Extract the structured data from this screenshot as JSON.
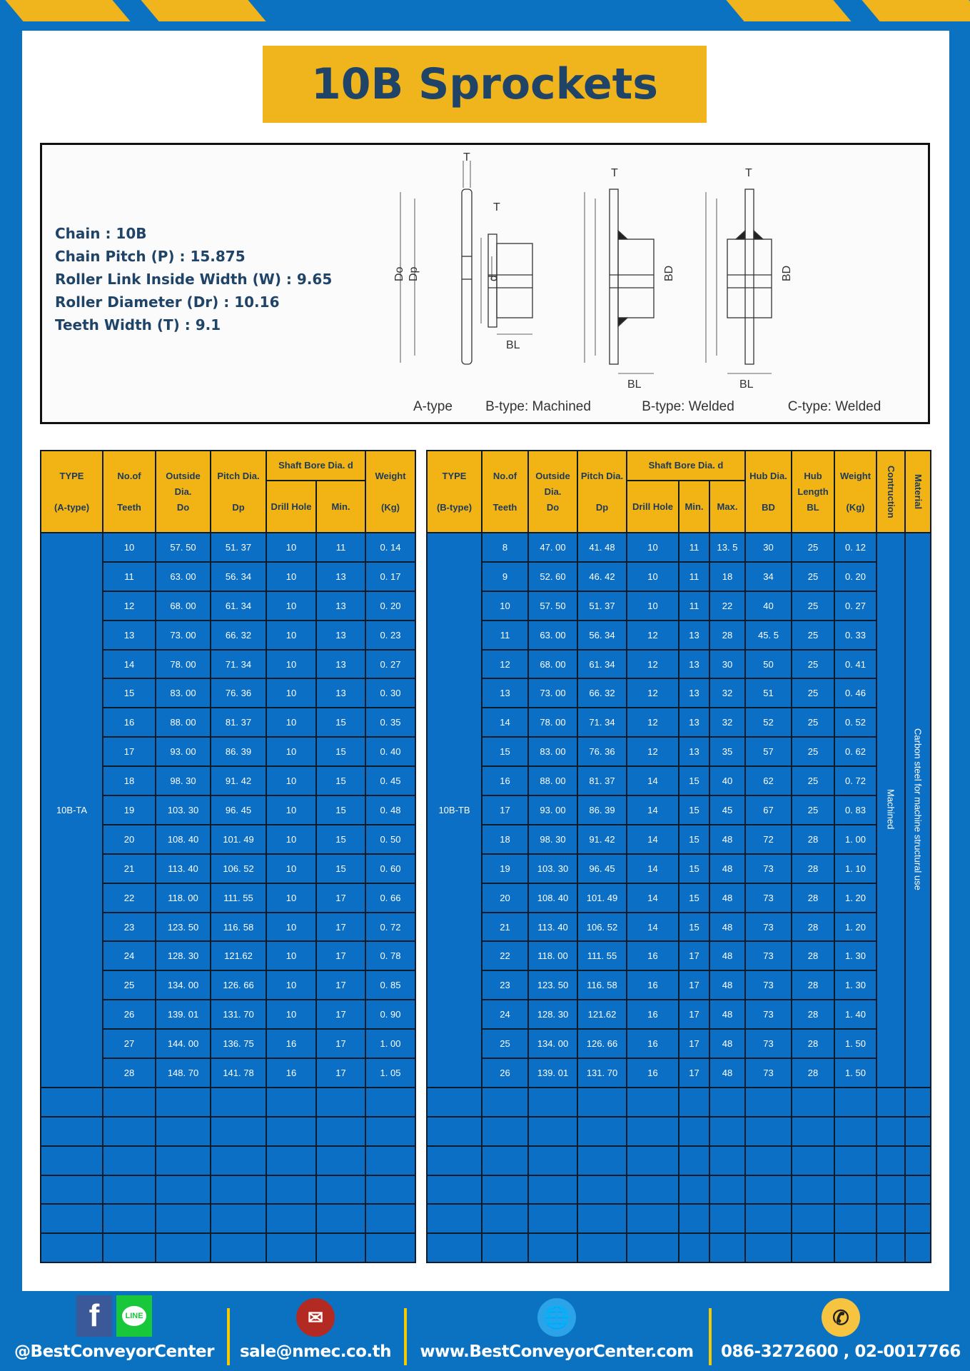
{
  "title": "10B Sprockets",
  "specs": [
    "Chain  :  10B",
    "Chain Pitch (P)  :  15.875",
    "Roller Link Inside Width (W) : 9.65",
    "Roller Diameter (Dr)  : 10.16",
    "Teeth Width (T)  :  9.1"
  ],
  "diagram": {
    "captions": [
      "A-type",
      "B-type: Machined",
      "B-type: Welded",
      "C-type: Welded"
    ],
    "labels": {
      "T": "T",
      "Do": "Do",
      "Dp": "Dp",
      "d": "d",
      "BD": "BD",
      "BL": "BL"
    }
  },
  "table_a": {
    "headers": {
      "type": "TYPE",
      "type2": "(A-type)",
      "teeth": "No.of",
      "teeth2": "Teeth",
      "do1": "Outside",
      "do2": "Dia.",
      "do3": "Do",
      "dp1": "Pitch Dia.",
      "dp2": "Dp",
      "bore": "Shaft Bore Dia. d",
      "drill": "Drill Hole",
      "min": "Min.",
      "wt1": "Weight",
      "wt2": "(Kg)"
    },
    "type_value": "10B-TA",
    "rows": [
      [
        "10",
        "57. 50",
        "51. 37",
        "10",
        "11",
        "0. 14"
      ],
      [
        "11",
        "63. 00",
        "56. 34",
        "10",
        "13",
        "0. 17"
      ],
      [
        "12",
        "68. 00",
        "61. 34",
        "10",
        "13",
        "0. 20"
      ],
      [
        "13",
        "73. 00",
        "66. 32",
        "10",
        "13",
        "0. 23"
      ],
      [
        "14",
        "78. 00",
        "71. 34",
        "10",
        "13",
        "0. 27"
      ],
      [
        "15",
        "83. 00",
        "76. 36",
        "10",
        "13",
        "0. 30"
      ],
      [
        "16",
        "88. 00",
        "81. 37",
        "10",
        "15",
        "0. 35"
      ],
      [
        "17",
        "93. 00",
        "86. 39",
        "10",
        "15",
        "0. 40"
      ],
      [
        "18",
        "98. 30",
        "91. 42",
        "10",
        "15",
        "0. 45"
      ],
      [
        "19",
        "103. 30",
        "96. 45",
        "10",
        "15",
        "0. 48"
      ],
      [
        "20",
        "108. 40",
        "101. 49",
        "10",
        "15",
        "0. 50"
      ],
      [
        "21",
        "113. 40",
        "106. 52",
        "10",
        "15",
        "0. 60"
      ],
      [
        "22",
        "118. 00",
        "111. 55",
        "10",
        "17",
        "0. 66"
      ],
      [
        "23",
        "123. 50",
        "116. 58",
        "10",
        "17",
        "0. 72"
      ],
      [
        "24",
        "128. 30",
        "121.62",
        "10",
        "17",
        "0. 78"
      ],
      [
        "25",
        "134. 00",
        "126. 66",
        "10",
        "17",
        "0. 85"
      ],
      [
        "26",
        "139. 01",
        "131. 70",
        "10",
        "17",
        "0. 90"
      ],
      [
        "27",
        "144. 00",
        "136. 75",
        "16",
        "17",
        "1. 00"
      ],
      [
        "28",
        "148. 70",
        "141. 78",
        "16",
        "17",
        "1. 05"
      ]
    ],
    "empty_rows": 6
  },
  "table_b": {
    "headers": {
      "type": "TYPE",
      "type2": "(B-type)",
      "teeth": "No.of",
      "teeth2": "Teeth",
      "do1": "Outside",
      "do2": "Dia.",
      "do3": "Do",
      "dp1": "Pitch Dia.",
      "dp2": "Dp",
      "bore": "Shaft Bore Dia. d",
      "drill": "Drill Hole",
      "min": "Min.",
      "max": "Max.",
      "bd1": "Hub Dia.",
      "bd2": "BD",
      "bl1": "Hub",
      "bl2": "Length",
      "bl3": "BL",
      "wt1": "Weight",
      "wt2": "(Kg)",
      "cons": "Contruction",
      "mat": "Material"
    },
    "type_value": "10B-TB",
    "construction": "Machined",
    "material": "Carbon steel  for machine structural use",
    "rows": [
      [
        "8",
        "47. 00",
        "41. 48",
        "10",
        "11",
        "13. 5",
        "30",
        "25",
        "0. 12"
      ],
      [
        "9",
        "52. 60",
        "46. 42",
        "10",
        "11",
        "18",
        "34",
        "25",
        "0. 20"
      ],
      [
        "10",
        "57. 50",
        "51. 37",
        "10",
        "11",
        "22",
        "40",
        "25",
        "0. 27"
      ],
      [
        "11",
        "63. 00",
        "56. 34",
        "12",
        "13",
        "28",
        "45. 5",
        "25",
        "0. 33"
      ],
      [
        "12",
        "68. 00",
        "61. 34",
        "12",
        "13",
        "30",
        "50",
        "25",
        "0. 41"
      ],
      [
        "13",
        "73. 00",
        "66. 32",
        "12",
        "13",
        "32",
        "51",
        "25",
        "0. 46"
      ],
      [
        "14",
        "78. 00",
        "71. 34",
        "12",
        "13",
        "32",
        "52",
        "25",
        "0. 52"
      ],
      [
        "15",
        "83. 00",
        "76. 36",
        "12",
        "13",
        "35",
        "57",
        "25",
        "0. 62"
      ],
      [
        "16",
        "88. 00",
        "81. 37",
        "14",
        "15",
        "40",
        "62",
        "25",
        "0. 72"
      ],
      [
        "17",
        "93. 00",
        "86. 39",
        "14",
        "15",
        "45",
        "67",
        "25",
        "0. 83"
      ],
      [
        "18",
        "98. 30",
        "91. 42",
        "14",
        "15",
        "48",
        "72",
        "28",
        "1. 00"
      ],
      [
        "19",
        "103. 30",
        "96. 45",
        "14",
        "15",
        "48",
        "73",
        "28",
        "1. 10"
      ],
      [
        "20",
        "108. 40",
        "101. 49",
        "14",
        "15",
        "48",
        "73",
        "28",
        "1. 20"
      ],
      [
        "21",
        "113. 40",
        "106. 52",
        "14",
        "15",
        "48",
        "73",
        "28",
        "1. 20"
      ],
      [
        "22",
        "118. 00",
        "111. 55",
        "16",
        "17",
        "48",
        "73",
        "28",
        "1. 30"
      ],
      [
        "23",
        "123. 50",
        "116. 58",
        "16",
        "17",
        "48",
        "73",
        "28",
        "1. 30"
      ],
      [
        "24",
        "128. 30",
        "121.62",
        "16",
        "17",
        "48",
        "73",
        "28",
        "1. 40"
      ],
      [
        "25",
        "134. 00",
        "126. 66",
        "16",
        "17",
        "48",
        "73",
        "28",
        "1. 50"
      ],
      [
        "26",
        "139. 01",
        "131. 70",
        "16",
        "17",
        "48",
        "73",
        "28",
        "1. 50"
      ]
    ],
    "empty_rows": 6
  },
  "footer": {
    "social": "@BestConveyorCenter",
    "email": "sale@nmec.co.th",
    "website": "www.BestConveyorCenter.com",
    "phone": "086-3272600 , 02-0017766",
    "line_label": "LINE",
    "icons": [
      "facebook-icon",
      "line-icon",
      "email-icon",
      "globe-icon",
      "phone-icon"
    ]
  },
  "colors": {
    "blue": "#0b72c1",
    "yellow": "#f0b41c",
    "cell_blue": "#0b6fc6",
    "title_text": "#1f4468"
  }
}
